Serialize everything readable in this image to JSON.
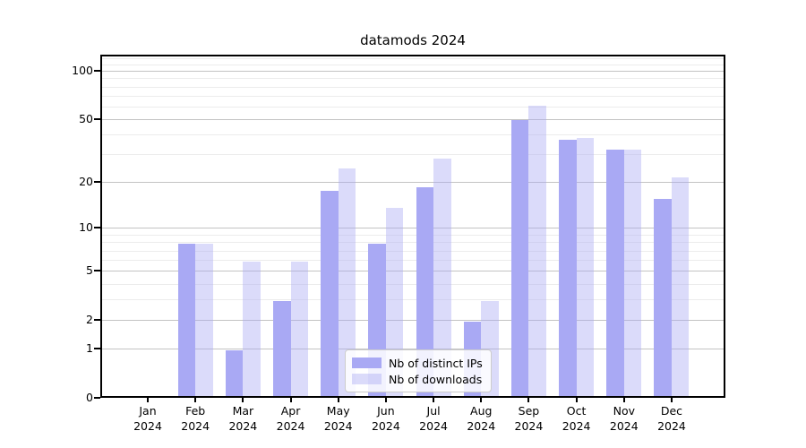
{
  "title": "datamods 2024",
  "legend": {
    "items": [
      {
        "label": "Nb of distinct IPs",
        "color": "#a9a9f4"
      },
      {
        "label": "Nb of downloads",
        "color": "#dcdcf8"
      }
    ]
  },
  "chart_data": {
    "type": "bar",
    "title": "datamods 2024",
    "categories": [
      "Jan 2024",
      "Feb 2024",
      "Mar 2024",
      "Apr 2024",
      "May 2024",
      "Jun 2024",
      "Jul 2024",
      "Aug 2024",
      "Sep 2024",
      "Oct 2024",
      "Nov 2024",
      "Dec 2024"
    ],
    "series": [
      {
        "name": "Nb of distinct IPs",
        "color": "#a9a9f4",
        "values": [
          0,
          8,
          1,
          3,
          18,
          8,
          19,
          2,
          51,
          38,
          33,
          16
        ]
      },
      {
        "name": "Nb of downloads",
        "color": "#dcdcf8",
        "values": [
          0,
          8,
          6,
          6,
          25,
          14,
          29,
          3,
          62,
          39,
          33,
          22
        ]
      }
    ],
    "xlabel": "",
    "ylabel": "",
    "yscale": "log1p",
    "ylim": [
      0,
      126
    ],
    "yticks": [
      0,
      1,
      2,
      5,
      10,
      20,
      50,
      100
    ],
    "ytick_labels": [
      "0",
      "1",
      "2",
      "5",
      "10",
      "20",
      "50",
      "100"
    ],
    "yticks_minor": [
      3,
      4,
      6,
      7,
      8,
      9,
      30,
      40,
      60,
      70,
      80,
      90,
      110,
      120
    ],
    "grid": true,
    "legend_position": "lower center"
  }
}
